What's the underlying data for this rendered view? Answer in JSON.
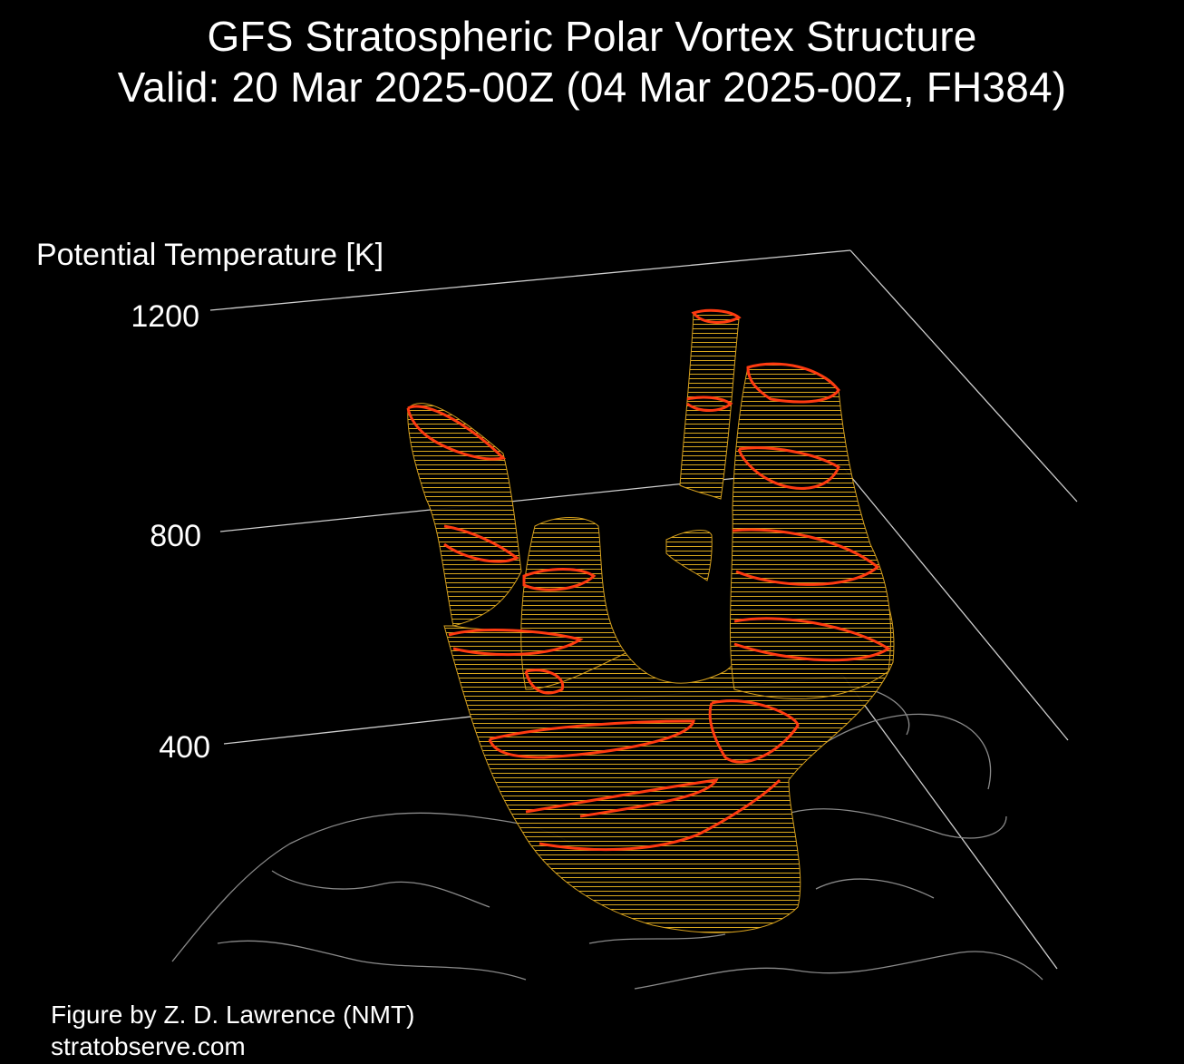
{
  "title_line1": "GFS Stratospheric Polar Vortex Structure",
  "title_line2": "Valid: 20 Mar 2025-00Z  (04 Mar 2025-00Z, FH384)",
  "z_axis": {
    "label": "Potential Temperature [K]",
    "ticks": [
      "1200",
      "800",
      "400"
    ]
  },
  "credit": {
    "line1": "Figure by Z. D. Lawrence (NMT)",
    "line2": "stratobserve.com"
  },
  "colors": {
    "background": "#000000",
    "text": "#ffffff",
    "gridline": "#cfcfcf",
    "vortex_low": "#d98a10",
    "vortex_mid": "#e0b020",
    "vortex_high": "#e8e040",
    "highlight_contour": "#ff3a10",
    "coastline": "#8a8a8a"
  }
}
